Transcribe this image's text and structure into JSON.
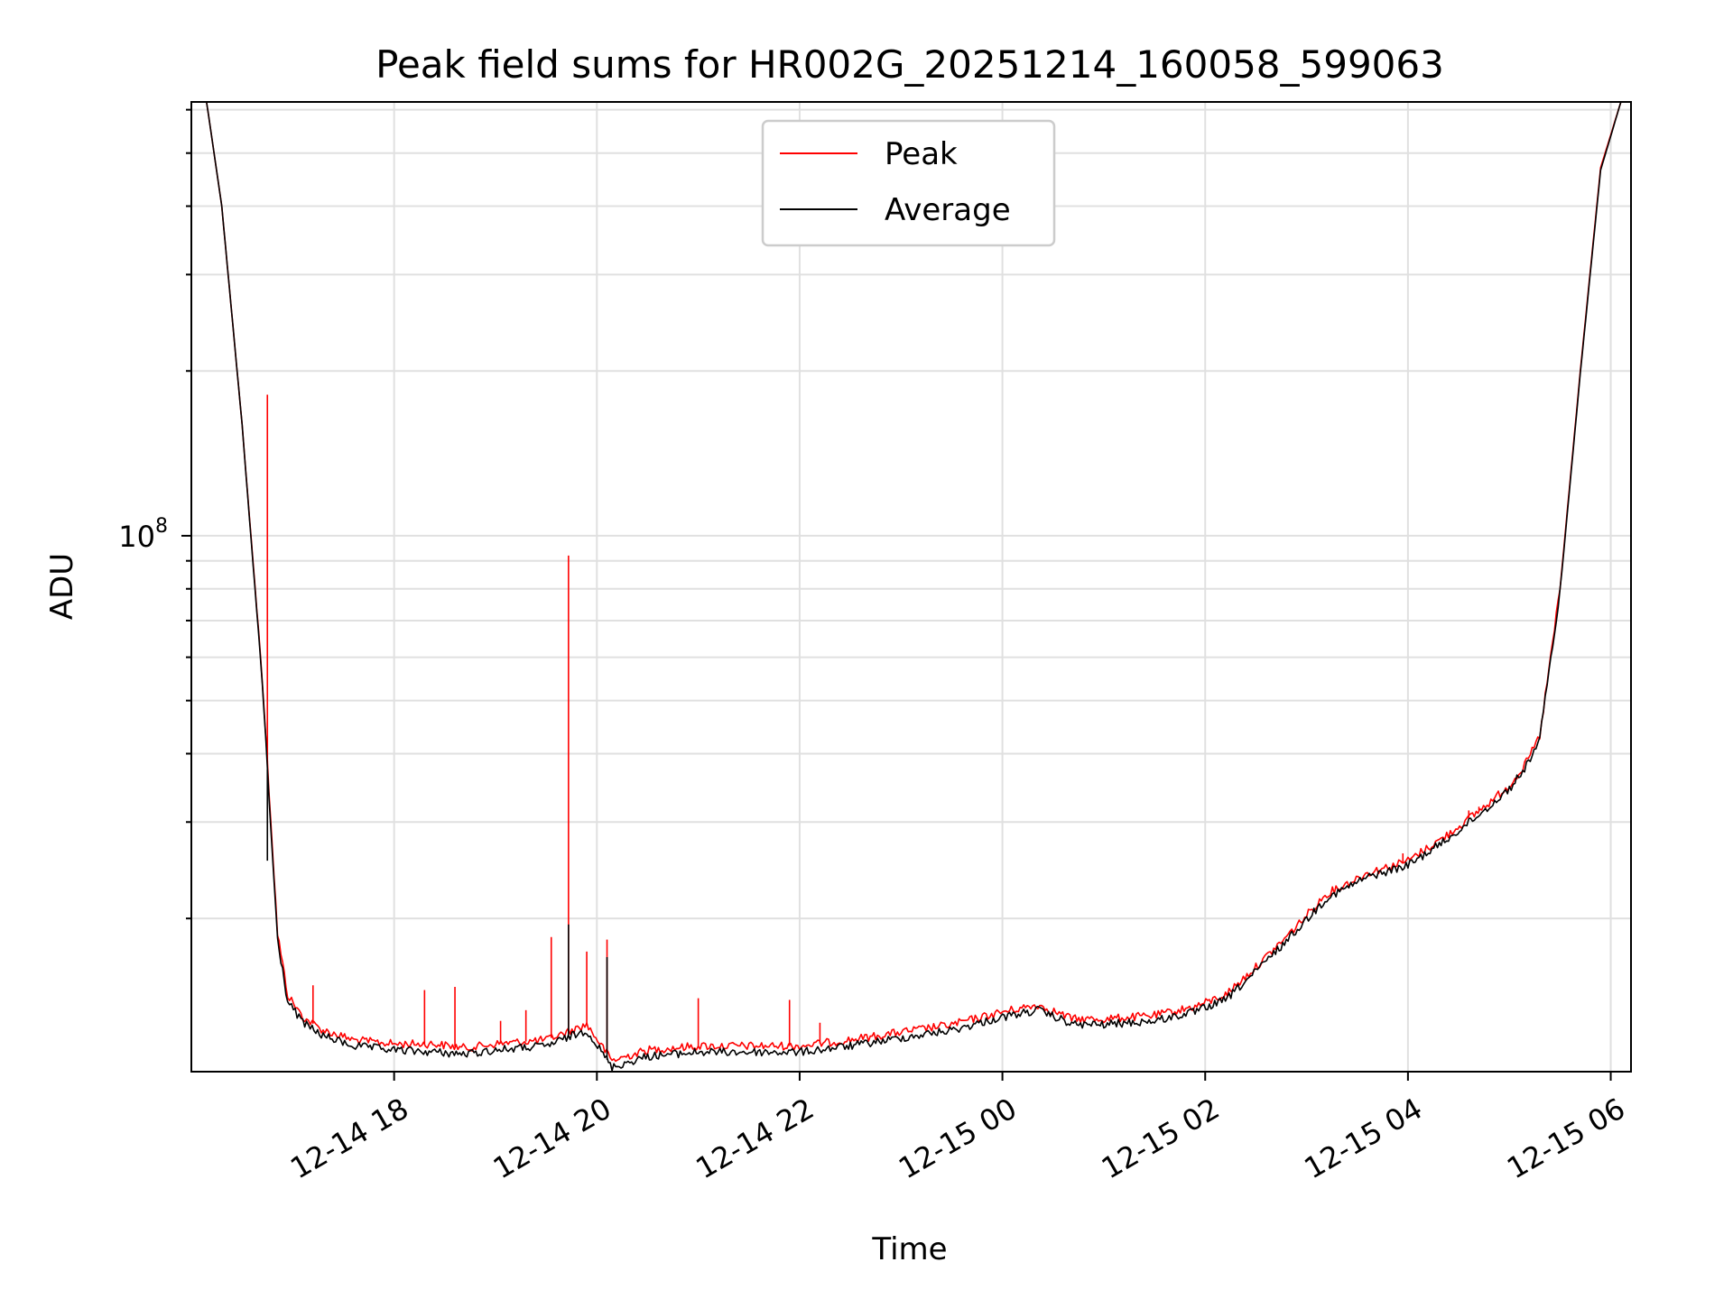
{
  "chart_data": {
    "type": "line",
    "title": "Peak field sums for HR002G_20251214_160058_599063",
    "xlabel": "Time",
    "ylabel": "ADU",
    "yscale": "log",
    "ylim": [
      10500000,
      620000000
    ],
    "xlim_hours": [
      16.0,
      30.2
    ],
    "x_tick_labels": [
      "12-14 18",
      "12-14 20",
      "12-14 22",
      "12-15 00",
      "12-15 02",
      "12-15 04",
      "12-15 06"
    ],
    "x_tick_hours": [
      18,
      20,
      22,
      24,
      26,
      28,
      30
    ],
    "y_major_tick_labels": [
      {
        "base": "10",
        "exp": "8"
      }
    ],
    "y_major_tick_values": [
      100000000
    ],
    "y_minor_tick_values": [
      20000000,
      30000000,
      40000000,
      50000000,
      60000000,
      70000000,
      80000000,
      90000000,
      200000000,
      300000000,
      400000000,
      500000000,
      600000000
    ],
    "grid": true,
    "legend_position": "upper center",
    "series": [
      {
        "name": "Peak",
        "color": "#ff0000",
        "x_hours": [
          16.0,
          16.15,
          16.3,
          16.5,
          16.7,
          16.8,
          16.85,
          16.95,
          17.1,
          17.3,
          17.6,
          18.0,
          18.4,
          18.7,
          19.0,
          19.5,
          19.9,
          20.15,
          20.5,
          21.0,
          21.5,
          22.0,
          22.5,
          23.0,
          23.5,
          24.0,
          24.35,
          24.7,
          25.0,
          25.5,
          25.9,
          26.2,
          26.5,
          26.8,
          27.2,
          27.6,
          28.0,
          28.4,
          28.8,
          29.0,
          29.15,
          29.3,
          29.5,
          29.7,
          29.9,
          30.1,
          30.2
        ],
        "y": [
          620000000,
          620000000,
          400000000,
          160000000,
          55000000,
          27000000,
          18800000,
          14500000,
          13200000,
          12500000,
          12000000,
          11800000,
          11800000,
          11600000,
          11800000,
          12000000,
          12800000,
          11000000,
          11500000,
          11700000,
          11700000,
          11700000,
          12000000,
          12400000,
          12800000,
          13500000,
          13900000,
          13100000,
          13100000,
          13300000,
          13800000,
          14500000,
          16300000,
          18500000,
          22200000,
          24200000,
          25500000,
          28500000,
          32500000,
          35000000,
          38000000,
          43000000,
          80000000,
          200000000,
          470000000,
          620000000,
          620000000
        ],
        "spikes": [
          {
            "x_hours": 16.75,
            "y": 181000000
          },
          {
            "x_hours": 17.2,
            "y": 15100000
          },
          {
            "x_hours": 18.3,
            "y": 14800000
          },
          {
            "x_hours": 18.6,
            "y": 15000000
          },
          {
            "x_hours": 19.05,
            "y": 13000000
          },
          {
            "x_hours": 19.3,
            "y": 13600000
          },
          {
            "x_hours": 19.55,
            "y": 18500000
          },
          {
            "x_hours": 19.72,
            "y": 92000000
          },
          {
            "x_hours": 19.9,
            "y": 17400000
          },
          {
            "x_hours": 20.1,
            "y": 18300000
          },
          {
            "x_hours": 21.0,
            "y": 14300000
          },
          {
            "x_hours": 21.9,
            "y": 14200000
          },
          {
            "x_hours": 22.2,
            "y": 12900000
          },
          {
            "x_hours": 27.95,
            "y": 26300000
          },
          {
            "x_hours": 28.6,
            "y": 31500000
          },
          {
            "x_hours": 28.7,
            "y": 32000000
          }
        ]
      },
      {
        "name": "Average",
        "color": "#000000",
        "x_hours": [
          16.0,
          16.15,
          16.3,
          16.5,
          16.7,
          16.8,
          16.85,
          16.95,
          17.1,
          17.3,
          17.6,
          18.0,
          18.4,
          18.7,
          19.0,
          19.5,
          19.9,
          20.15,
          20.5,
          21.0,
          21.5,
          22.0,
          22.5,
          23.0,
          23.5,
          24.0,
          24.35,
          24.7,
          25.0,
          25.5,
          25.9,
          26.2,
          26.5,
          26.8,
          27.2,
          27.6,
          28.0,
          28.4,
          28.8,
          29.0,
          29.15,
          29.3,
          29.5,
          29.7,
          29.9,
          30.1,
          30.2
        ],
        "y": [
          620000000,
          620000000,
          400000000,
          160000000,
          54000000,
          26000000,
          18300000,
          14100000,
          12900000,
          12200000,
          11700000,
          11500000,
          11400000,
          11300000,
          11500000,
          11700000,
          12500000,
          10700000,
          11200000,
          11400000,
          11400000,
          11400000,
          11700000,
          12100000,
          12500000,
          13200000,
          13600000,
          12800000,
          12800000,
          13000000,
          13500000,
          14200000,
          16000000,
          18200000,
          21800000,
          23800000,
          25000000,
          28000000,
          32000000,
          34500000,
          37500000,
          42500000,
          79000000,
          198000000,
          465000000,
          620000000,
          620000000
        ],
        "spikes": [
          {
            "x_hours": 16.75,
            "y": 25500000
          },
          {
            "x_hours": 19.72,
            "y": 19500000
          },
          {
            "x_hours": 20.1,
            "y": 17000000
          }
        ]
      }
    ]
  }
}
